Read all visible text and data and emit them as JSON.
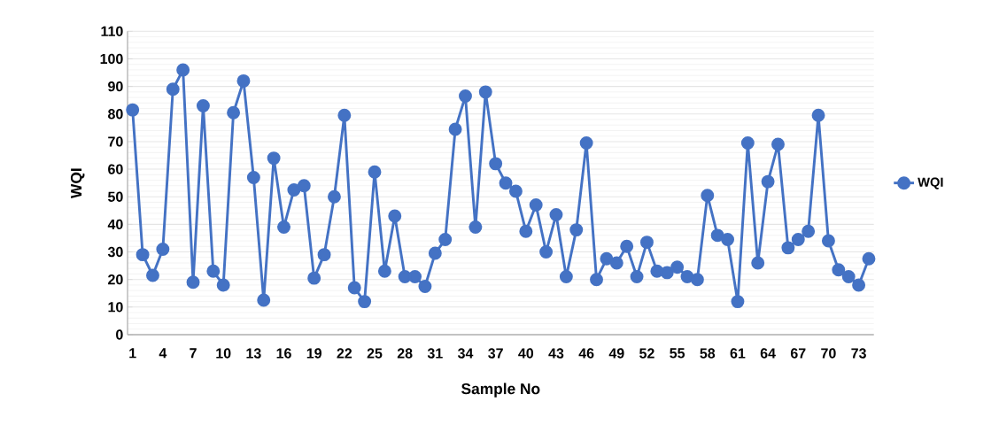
{
  "chart_data": {
    "type": "line",
    "xlabel": "Sample No",
    "ylabel": "WQI",
    "categories": [
      "1",
      null,
      null,
      "4",
      null,
      null,
      "7",
      null,
      null,
      "10",
      null,
      null,
      "13",
      null,
      null,
      "16",
      null,
      null,
      "19",
      null,
      null,
      "22",
      null,
      null,
      "25",
      null,
      null,
      "28",
      null,
      null,
      "31",
      null,
      null,
      "34",
      null,
      null,
      "37",
      null,
      null,
      "40",
      null,
      null,
      "43",
      null,
      null,
      "46",
      null,
      null,
      "49",
      null,
      null,
      "52",
      null,
      null,
      "55",
      null,
      null,
      "58",
      null,
      null,
      "61",
      null,
      null,
      "64",
      null,
      null,
      "67",
      null,
      null,
      "70",
      null,
      null,
      "73",
      null
    ],
    "series": [
      {
        "name": "WQI",
        "color": "#4472c4",
        "values": [
          81.5,
          29,
          21.5,
          31,
          89,
          96,
          19,
          83,
          23,
          18,
          80.5,
          92,
          57,
          12.5,
          64,
          39,
          52.5,
          54,
          20.5,
          29,
          50,
          79.5,
          17,
          12,
          59,
          23,
          43,
          21,
          21,
          17.5,
          29.5,
          34.5,
          74.5,
          86.5,
          39,
          88,
          62,
          55,
          52,
          37.5,
          47,
          30,
          43.5,
          21,
          38,
          69.5,
          20,
          27.5,
          26,
          32,
          21,
          33.5,
          23,
          22.5,
          24.5,
          21,
          20,
          50.5,
          36,
          34.5,
          12,
          69.5,
          26,
          55.5,
          69,
          31.5,
          34.5,
          37.5,
          79.5,
          34,
          23.5,
          21,
          18,
          27.5
        ]
      }
    ],
    "ylim": [
      0,
      110
    ],
    "yticks": [
      0,
      10,
      20,
      30,
      40,
      50,
      60,
      70,
      80,
      90,
      100,
      110
    ],
    "grid": "y",
    "legend": "right",
    "marker": "circle",
    "line_style": "solid"
  }
}
